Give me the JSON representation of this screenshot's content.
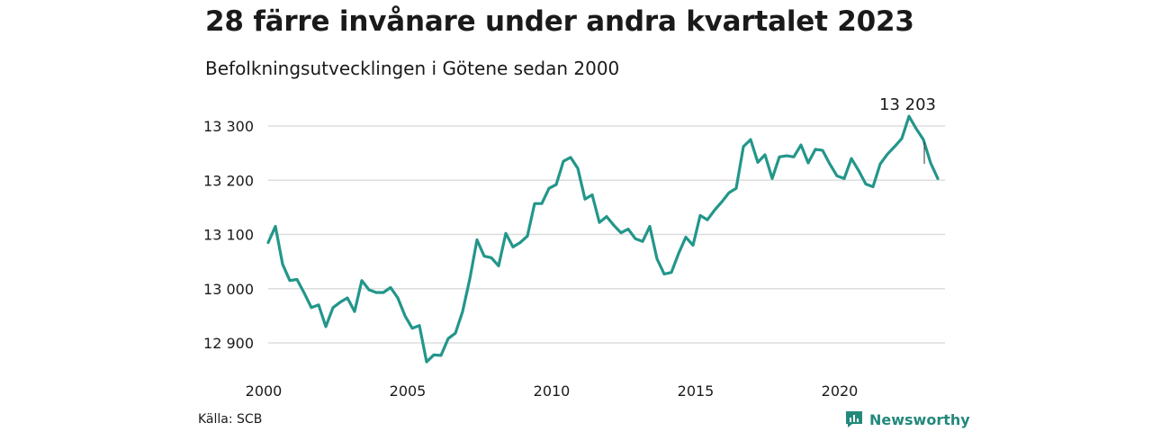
{
  "title": "28 färre invånare under andra kvartalet 2023",
  "subtitle": "Befolkningsutvecklingen i Götene sedan 2000",
  "source": "Källa: SCB",
  "brand": {
    "name": "Newsworthy",
    "icon": "chart-bubble-icon"
  },
  "colors": {
    "line": "#23968a",
    "grid": "#dddddd",
    "brand": "#23897b"
  },
  "chart_data": {
    "type": "line",
    "title": "28 färre invånare under andra kvartalet 2023",
    "xlabel": "",
    "ylabel": "",
    "xlim": [
      2000,
      2023.5
    ],
    "ylim": [
      12860,
      13330
    ],
    "x_ticks": [
      2000,
      2005,
      2010,
      2015,
      2020
    ],
    "x_tick_labels": [
      "2000",
      "2005",
      "2010",
      "2015",
      "2020"
    ],
    "y_ticks": [
      12900,
      13000,
      13100,
      13200,
      13300
    ],
    "y_tick_labels": [
      "12 900",
      "13 000",
      "13 100",
      "13 200",
      "13 300"
    ],
    "grid": true,
    "annotation": {
      "label": "13 203"
    },
    "x": [
      2000.0,
      2000.25,
      2000.5,
      2000.75,
      2001.0,
      2001.25,
      2001.5,
      2001.75,
      2002.0,
      2002.25,
      2002.5,
      2002.75,
      2003.0,
      2003.25,
      2003.5,
      2003.75,
      2004.0,
      2004.25,
      2004.5,
      2004.75,
      2005.0,
      2005.25,
      2005.5,
      2005.75,
      2006.0,
      2006.25,
      2006.5,
      2006.75,
      2007.0,
      2007.25,
      2007.5,
      2007.75,
      2008.0,
      2008.25,
      2008.5,
      2008.75,
      2009.0,
      2009.25,
      2009.5,
      2009.75,
      2010.0,
      2010.25,
      2010.5,
      2010.75,
      2011.0,
      2011.25,
      2011.5,
      2011.75,
      2012.0,
      2012.25,
      2012.5,
      2012.75,
      2013.0,
      2013.25,
      2013.5,
      2013.75,
      2014.0,
      2014.25,
      2014.5,
      2014.75,
      2015.0,
      2015.25,
      2015.5,
      2015.75,
      2016.0,
      2016.25,
      2016.5,
      2016.75,
      2017.0,
      2017.25,
      2017.5,
      2017.75,
      2018.0,
      2018.25,
      2018.5,
      2018.75,
      2019.0,
      2019.25,
      2019.5,
      2019.75,
      2020.0,
      2020.25,
      2020.5,
      2020.75,
      2021.0,
      2021.25,
      2021.5,
      2021.75,
      2022.0,
      2022.25,
      2022.5,
      2022.75,
      2023.0,
      2023.25
    ],
    "series": [
      {
        "values": [
          13085,
          13115,
          13045,
          13015,
          13017,
          12992,
          12965,
          12970,
          12930,
          12965,
          12975,
          12983,
          12958,
          13015,
          12998,
          12993,
          12993,
          13002,
          12983,
          12950,
          12927,
          12932,
          12865,
          12878,
          12877,
          12908,
          12918,
          12958,
          13018,
          13090,
          13060,
          13057,
          13042,
          13102,
          13077,
          13085,
          13097,
          13157,
          13157,
          13185,
          13192,
          13235,
          13242,
          13222,
          13165,
          13173,
          13122,
          13133,
          13117,
          13103,
          13110,
          13092,
          13087,
          13115,
          13055,
          13027,
          13030,
          13065,
          13095,
          13080,
          13135,
          13127,
          13145,
          13160,
          13177,
          13185,
          13262,
          13275,
          13233,
          13247,
          13203,
          13243,
          13245,
          13243,
          13265,
          13232,
          13257,
          13255,
          13230,
          13208,
          13203,
          13240,
          13218,
          13193,
          13188,
          13230,
          13248,
          13262,
          13277,
          13318,
          13295,
          13275,
          13232,
          13203
        ]
      }
    ]
  }
}
